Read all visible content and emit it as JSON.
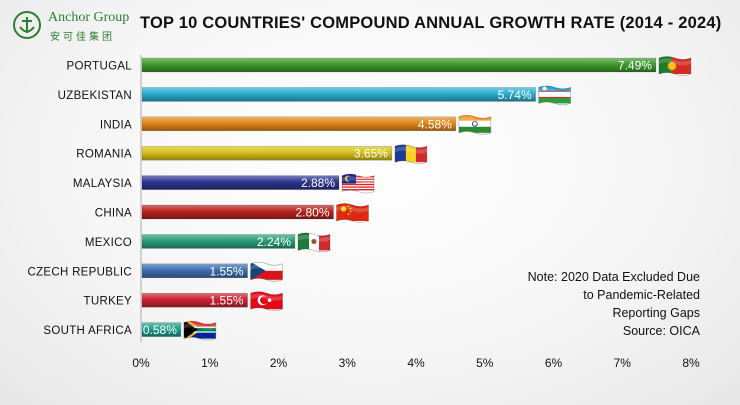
{
  "logo": {
    "name": "Anchor Group",
    "chinese": "安可佳集团"
  },
  "chart_data": {
    "type": "bar",
    "orientation": "horizontal",
    "title": "TOP 10 COUNTRIES' COMPOUND ANNUAL GROWTH RATE (2014 - 2024)",
    "categories": [
      "PORTUGAL",
      "UZBEKISTAN",
      "INDIA",
      "ROMANIA",
      "MALAYSIA",
      "CHINA",
      "MEXICO",
      "CZECH REPUBLIC",
      "TURKEY",
      "SOUTH AFRICA"
    ],
    "values": [
      7.49,
      5.74,
      4.58,
      3.65,
      2.88,
      2.8,
      2.24,
      1.55,
      1.55,
      0.58
    ],
    "value_labels": [
      "7.49%",
      "5.74%",
      "4.58%",
      "3.65%",
      "2.88%",
      "2.80%",
      "2.24%",
      "1.55%",
      "1.55%",
      "0.58%"
    ],
    "bar_colors": [
      "#3f9a2c",
      "#2aaed0",
      "#e3871a",
      "#d8c21c",
      "#2e3590",
      "#b8231f",
      "#2a9d7a",
      "#3e6fae",
      "#cc2233",
      "#1f9e8a"
    ],
    "flag_icons": [
      "portugal-flag-icon",
      "uzbekistan-flag-icon",
      "india-flag-icon",
      "romania-flag-icon",
      "malaysia-flag-icon",
      "china-flag-icon",
      "mexico-flag-icon",
      "czech-republic-flag-icon",
      "turkey-flag-icon",
      "south-africa-flag-icon"
    ],
    "xlim": [
      0,
      8
    ],
    "xticks": [
      0,
      1,
      2,
      3,
      4,
      5,
      6,
      7,
      8
    ],
    "xtick_labels": [
      "0%",
      "1%",
      "2%",
      "3%",
      "4%",
      "5%",
      "6%",
      "7%",
      "8%"
    ],
    "grid": false,
    "xlabel": "",
    "ylabel": ""
  },
  "note": {
    "lines": [
      "Note: 2020 Data Excluded Due",
      "to Pandemic-Related",
      "Reporting Gaps",
      "Source: OICA"
    ]
  }
}
